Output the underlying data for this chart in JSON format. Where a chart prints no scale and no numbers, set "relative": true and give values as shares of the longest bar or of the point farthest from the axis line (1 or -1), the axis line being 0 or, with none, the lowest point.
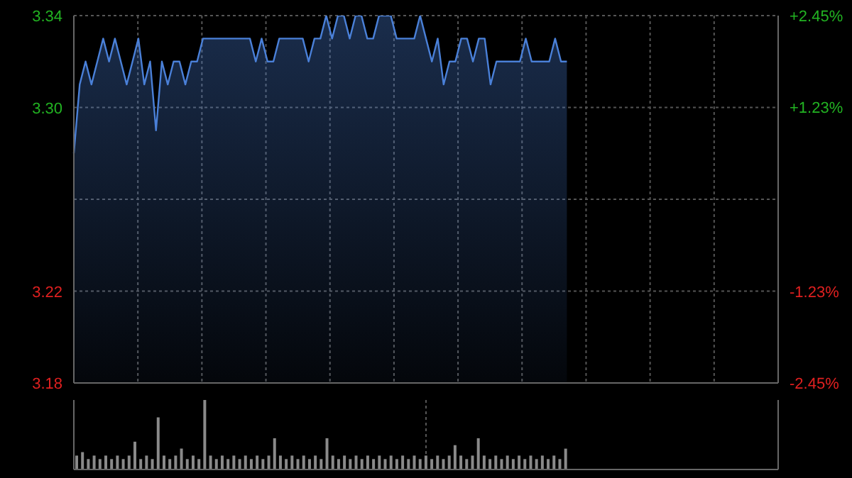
{
  "chart_data": [
    {
      "type": "area",
      "categories": [
        null,
        null,
        null,
        null,
        null,
        null,
        null,
        null,
        null,
        null,
        null,
        null,
        null,
        null,
        null,
        null,
        null,
        null,
        null,
        null,
        null,
        null,
        null,
        null,
        null,
        null,
        null,
        null,
        null,
        null,
        null,
        null,
        null,
        null,
        null,
        null,
        null,
        null,
        null,
        null,
        null,
        null,
        null,
        null,
        null,
        null,
        null,
        null,
        null,
        null,
        null,
        null,
        null,
        null,
        null,
        null,
        null,
        null,
        null,
        null,
        null,
        null,
        null,
        null,
        null,
        null,
        null,
        null,
        null,
        null,
        null,
        null,
        null,
        null,
        null,
        null,
        null,
        null,
        null,
        null,
        null,
        null,
        null,
        null,
        null,
        null,
        null,
        null,
        null,
        null,
        null,
        null,
        null,
        null,
        null,
        null,
        null,
        null,
        null,
        null,
        null,
        null,
        null,
        null,
        null,
        null,
        null,
        null,
        null,
        null,
        null,
        null,
        null,
        null,
        null,
        null,
        null,
        null,
        null,
        null,
        null
      ],
      "ylim": [
        3.18,
        3.34
      ],
      "yticks": [
        3.18,
        3.22,
        {
          "value": 3.26,
          "label": null
        },
        {
          "value": 3.3,
          "label": "3.30"
        },
        3.34
      ],
      "y2lim": [
        -2.45,
        2.45
      ],
      "y2ticks": [
        {
          "value": -2.45,
          "label": "-2.45%"
        },
        {
          "value": -1.23,
          "label": "-1.23%"
        },
        {
          "value": 1.23,
          "label": "+1.23%"
        },
        {
          "value": 2.45,
          "label": "+2.45%"
        }
      ],
      "grid": true,
      "series": [
        {
          "color": "#4a80d8",
          "values": [
            3.28,
            3.31,
            3.32,
            3.31,
            3.32,
            3.33,
            3.32,
            3.33,
            3.32,
            3.31,
            3.32,
            3.33,
            3.31,
            3.32,
            3.29,
            3.32,
            3.31,
            3.32,
            3.32,
            3.31,
            3.32,
            3.32,
            3.33,
            3.33,
            3.33,
            3.33,
            3.33,
            3.33,
            3.33,
            3.33,
            3.33,
            3.32,
            3.33,
            3.32,
            3.32,
            3.33,
            3.33,
            3.33,
            3.33,
            3.33,
            3.32,
            3.33,
            3.33,
            3.34,
            3.33,
            3.34,
            3.34,
            3.33,
            3.34,
            3.34,
            3.33,
            3.33,
            3.34,
            3.34,
            3.34,
            3.33,
            3.33,
            3.33,
            3.33,
            3.34,
            3.33,
            3.32,
            3.33,
            3.31,
            3.32,
            3.32,
            3.33,
            3.33,
            3.32,
            3.33,
            3.33,
            3.31,
            3.32,
            3.32,
            3.32,
            3.32,
            3.32,
            3.33,
            3.32,
            3.32,
            3.32,
            3.32,
            3.33,
            3.32,
            3.32,
            null,
            null,
            null,
            null,
            null,
            null,
            null,
            null,
            null,
            null,
            null,
            null,
            null,
            null,
            null,
            null,
            null,
            null,
            null,
            null,
            null,
            null,
            null,
            null,
            null,
            null,
            null,
            null,
            null,
            null,
            null,
            null,
            null,
            null,
            null,
            null
          ]
        }
      ]
    },
    {
      "type": "bar",
      "relative": true,
      "categories": [
        null,
        null,
        null,
        null,
        null,
        null,
        null,
        null,
        null,
        null,
        null,
        null,
        null,
        null,
        null,
        null,
        null,
        null,
        null,
        null,
        null,
        null,
        null,
        null,
        null,
        null,
        null,
        null,
        null,
        null,
        null,
        null,
        null,
        null,
        null,
        null,
        null,
        null,
        null,
        null,
        null,
        null,
        null,
        null,
        null,
        null,
        null,
        null,
        null,
        null,
        null,
        null,
        null,
        null,
        null,
        null,
        null,
        null,
        null,
        null,
        null,
        null,
        null,
        null,
        null,
        null,
        null,
        null,
        null,
        null,
        null,
        null,
        null,
        null,
        null,
        null,
        null,
        null,
        null,
        null,
        null,
        null,
        null,
        null,
        null,
        null,
        null,
        null,
        null,
        null,
        null,
        null,
        null,
        null,
        null,
        null,
        null,
        null,
        null,
        null,
        null,
        null,
        null,
        null,
        null,
        null,
        null,
        null,
        null,
        null,
        null,
        null,
        null,
        null,
        null,
        null,
        null,
        null,
        null,
        null,
        null
      ],
      "grid": "x",
      "series": [
        {
          "color": "#8a8a8a",
          "values": [
            0.2,
            0.25,
            0.15,
            0.2,
            0.15,
            0.2,
            0.15,
            0.2,
            0.15,
            0.2,
            0.4,
            0.15,
            0.2,
            0.15,
            0.75,
            0.2,
            0.15,
            0.2,
            0.3,
            0.15,
            0.2,
            0.15,
            1,
            0.2,
            0.15,
            0.2,
            0.15,
            0.2,
            0.15,
            0.2,
            0.15,
            0.2,
            0.15,
            0.2,
            0.45,
            0.2,
            0.15,
            0.2,
            0.15,
            0.2,
            0.15,
            0.2,
            0.15,
            0.45,
            0.2,
            0.15,
            0.2,
            0.15,
            0.2,
            0.15,
            0.2,
            0.15,
            0.2,
            0.15,
            0.2,
            0.15,
            0.2,
            0.15,
            0.2,
            0.15,
            0.2,
            0.15,
            0.2,
            0.15,
            0.2,
            0.35,
            0.2,
            0.15,
            0.2,
            0.45,
            0.2,
            0.15,
            0.2,
            0.15,
            0.2,
            0.15,
            0.2,
            0.15,
            0.2,
            0.15,
            0.2,
            0.15,
            0.2,
            0.15,
            0.3,
            null,
            null,
            null,
            null,
            null,
            null,
            null,
            null,
            null,
            null,
            null,
            null,
            null,
            null,
            null,
            null,
            null,
            null,
            null,
            null,
            null,
            null,
            null,
            null,
            null,
            null,
            null,
            null,
            null,
            null,
            null,
            null,
            null,
            null,
            null,
            null
          ]
        }
      ]
    }
  ]
}
